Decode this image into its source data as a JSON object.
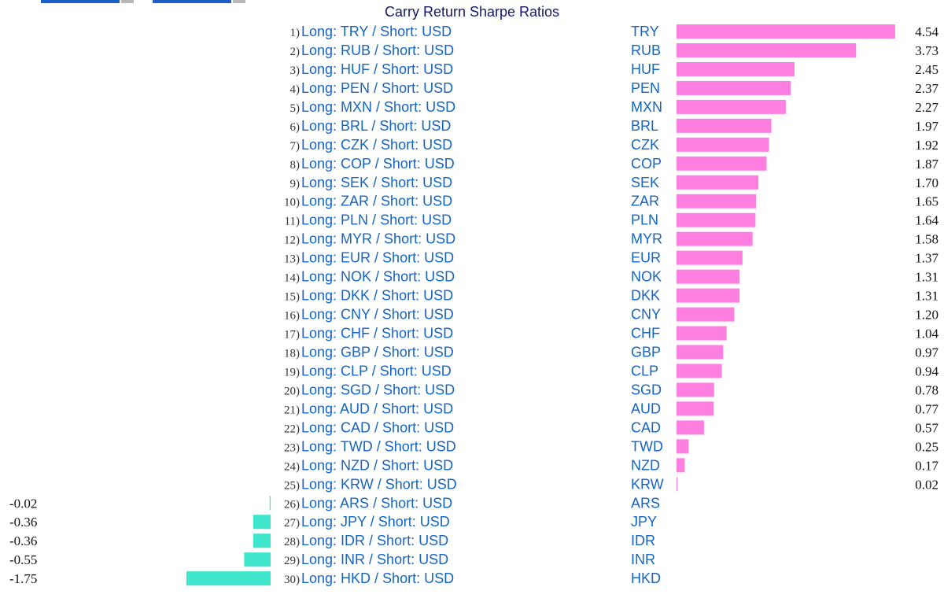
{
  "header": {
    "controls": [
      {
        "name": "date-range-start"
      },
      {
        "name": "date-range-end"
      }
    ]
  },
  "chart_data": {
    "type": "bar",
    "orientation": "horizontal",
    "title": "Carry Return Sharpe Ratios",
    "rank_labels": [
      "1)",
      "2)",
      "3)",
      "4)",
      "5)",
      "6)",
      "7)",
      "8)",
      "9)",
      "10)",
      "11)",
      "12)",
      "13)",
      "14)",
      "15)",
      "16)",
      "17)",
      "18)",
      "19)",
      "20)",
      "21)",
      "22)",
      "23)",
      "24)",
      "25)",
      "26)",
      "27)",
      "28)",
      "29)",
      "30)"
    ],
    "categories": [
      "Long: TRY / Short: USD",
      "Long: RUB / Short: USD",
      "Long: HUF / Short: USD",
      "Long: PEN / Short: USD",
      "Long: MXN / Short: USD",
      "Long: BRL / Short: USD",
      "Long: CZK / Short: USD",
      "Long: COP / Short: USD",
      "Long: SEK / Short: USD",
      "Long: ZAR / Short: USD",
      "Long: PLN / Short: USD",
      "Long: MYR / Short: USD",
      "Long: EUR / Short: USD",
      "Long: NOK / Short: USD",
      "Long: DKK / Short: USD",
      "Long: CNY / Short: USD",
      "Long: CHF / Short: USD",
      "Long: GBP / Short: USD",
      "Long: CLP / Short: USD",
      "Long: SGD / Short: USD",
      "Long: AUD / Short: USD",
      "Long: CAD / Short: USD",
      "Long: TWD / Short: USD",
      "Long: NZD / Short: USD",
      "Long: KRW / Short: USD",
      "Long: ARS / Short: USD",
      "Long: JPY / Short: USD",
      "Long: IDR / Short: USD",
      "Long: INR / Short: USD",
      "Long: HKD / Short: USD"
    ],
    "tickers": [
      "TRY",
      "RUB",
      "HUF",
      "PEN",
      "MXN",
      "BRL",
      "CZK",
      "COP",
      "SEK",
      "ZAR",
      "PLN",
      "MYR",
      "EUR",
      "NOK",
      "DKK",
      "CNY",
      "CHF",
      "GBP",
      "CLP",
      "SGD",
      "AUD",
      "CAD",
      "TWD",
      "NZD",
      "KRW",
      "ARS",
      "JPY",
      "IDR",
      "INR",
      "HKD"
    ],
    "values": [
      4.54,
      3.73,
      2.45,
      2.37,
      2.27,
      1.97,
      1.92,
      1.87,
      1.7,
      1.65,
      1.64,
      1.58,
      1.37,
      1.31,
      1.31,
      1.2,
      1.04,
      0.97,
      0.94,
      0.78,
      0.77,
      0.57,
      0.25,
      0.17,
      0.02,
      -0.02,
      -0.36,
      -0.36,
      -0.55,
      -1.75
    ],
    "value_labels": [
      "4.54",
      "3.73",
      "2.45",
      "2.37",
      "2.27",
      "1.97",
      "1.92",
      "1.87",
      "1.70",
      "1.65",
      "1.64",
      "1.58",
      "1.37",
      "1.31",
      "1.31",
      "1.20",
      "1.04",
      "0.97",
      "0.94",
      "0.78",
      "0.77",
      "0.57",
      "0.25",
      "0.17",
      "0.02",
      "-0.02",
      "-0.36",
      "-0.36",
      "-0.55",
      "-1.75"
    ],
    "colors": {
      "positive": "#ff7fe0",
      "negative": "#40e6cc",
      "label": "#1565c0",
      "rank": "#333333",
      "value": "#111111",
      "title": "#15196b"
    },
    "xlabel": "",
    "ylabel": "",
    "grid": false,
    "legend": "none"
  }
}
